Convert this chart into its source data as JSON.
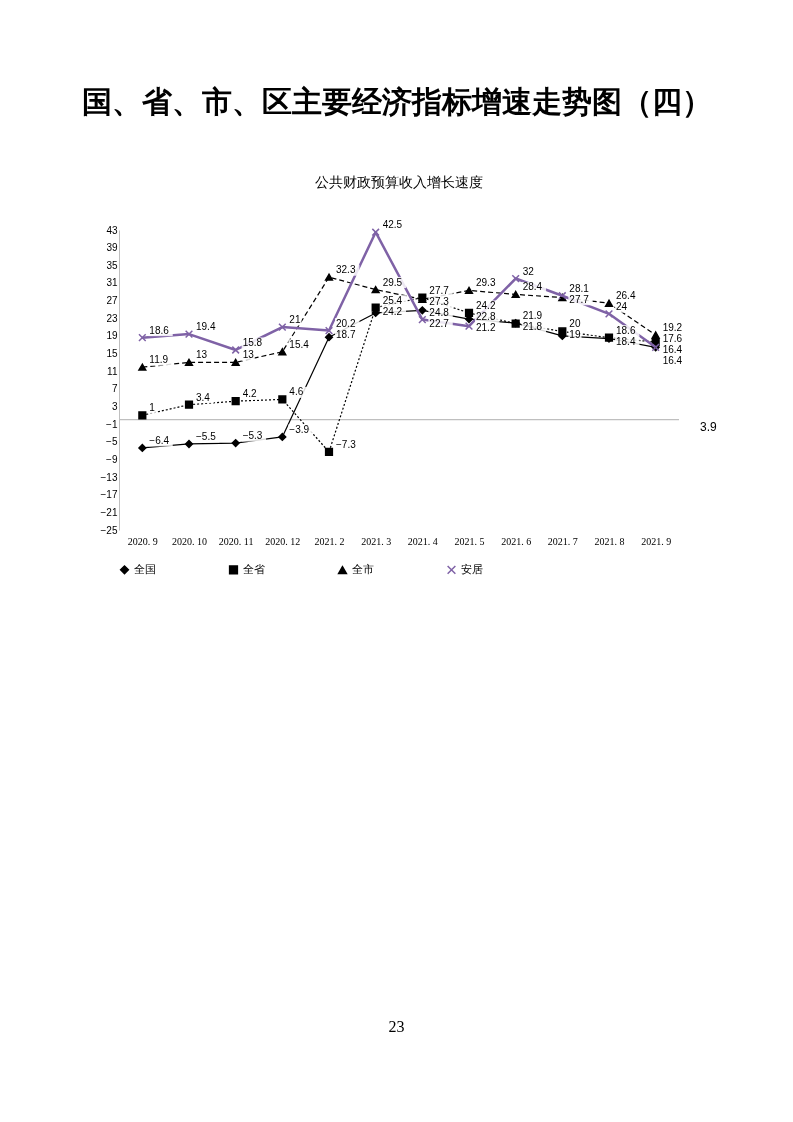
{
  "chart_data": {
    "type": "line",
    "title": "国、省、市、区主要经济指标增速走势图（四）",
    "subtitle": "公共财政预算收入增长速度",
    "categories": [
      "2020. 9",
      "2020. 10",
      "2020. 11",
      "2020. 12",
      "2021. 2",
      "2021. 3",
      "2021. 4",
      "2021. 5",
      "2021. 6",
      "2021. 7",
      "2021. 8",
      "2021. 9"
    ],
    "series": [
      {
        "name": "全国",
        "color": "#000000",
        "marker": "diamond",
        "line_style": "solid",
        "values": [
          -6.4,
          -5.5,
          -5.3,
          -3.9,
          18.7,
          24.2,
          24.8,
          22.8,
          21.9,
          19,
          18.4,
          16.4
        ]
      },
      {
        "name": "全省",
        "color": "#000000",
        "marker": "square",
        "line_style": "dotted",
        "values": [
          1,
          3.4,
          4.2,
          4.6,
          -7.3,
          25.4,
          27.7,
          24.2,
          21.8,
          20,
          18.6,
          17.6
        ]
      },
      {
        "name": "全市",
        "color": "#000000",
        "marker": "triangle",
        "line_style": "dashed",
        "values": [
          11.9,
          13,
          13,
          15.4,
          32.3,
          29.5,
          27.3,
          29.3,
          28.4,
          27.7,
          26.4,
          19.2
        ]
      },
      {
        "name": "安居",
        "color": "#7f62a6",
        "marker": "cross",
        "line_style": "solid",
        "values": [
          18.6,
          19.4,
          15.8,
          21,
          20.2,
          42.5,
          22.7,
          21.2,
          32,
          28.1,
          24,
          16.4
        ]
      }
    ],
    "ylim": [
      -25,
      43
    ],
    "yticks": [
      -25,
      -21,
      -17,
      -13,
      -9,
      -5,
      -1,
      3,
      7,
      11,
      15,
      19,
      23,
      27,
      31,
      35,
      39,
      43
    ],
    "ref_lines": [
      {
        "axis": "y",
        "value": 0,
        "color": "#bfbfbf"
      }
    ],
    "data_labels": true,
    "grid": false,
    "legend": "bottom",
    "annotations": [
      "3.9",
      "23"
    ]
  }
}
